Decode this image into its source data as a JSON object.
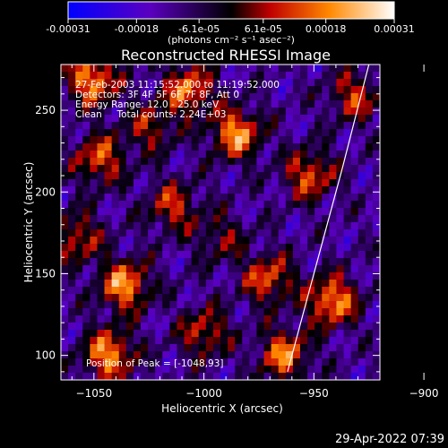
{
  "chart_data": {
    "type": "heatmap",
    "title": "Reconstructed RHESSI Image",
    "xlabel": "Heliocentric X (arcsec)",
    "ylabel": "Heliocentric Y (arcsec)",
    "xlim": [
      -1065,
      -920
    ],
    "ylim": [
      85,
      278
    ],
    "x_ticks": [
      -1050,
      -1000,
      -950,
      -900
    ],
    "y_ticks": [
      100,
      150,
      200,
      250
    ],
    "colorbar": {
      "range": [
        -0.00031,
        0.00031
      ],
      "tick_values": [
        -0.00031,
        -0.00018,
        -6.1e-05,
        6.1e-05,
        0.00018,
        0.00031
      ],
      "tick_labels": [
        "-0.00031",
        "-0.00018",
        "-6.1e-05",
        "6.1e-05",
        "0.00018",
        "0.00031"
      ],
      "unit_label": "(photons cm⁻² s⁻¹ asec⁻²)",
      "colors": [
        "#0000ff",
        "#5a00c0",
        "#000000",
        "#c00000",
        "#ff8800",
        "#ffffff"
      ]
    },
    "annotations": [
      "27-Feb-2003 11:15:52.000 to 11:19:52.000",
      "Detectors: 3F 4F 5F 6F 7F 8F, Att 0",
      "Energy Range: 12.0 - 25.0 keV",
      "Clean     Total counts: 2.24E+03"
    ],
    "peak_label": "Position of Peak = [-1048,93]",
    "limb_line": [
      [
        -962,
        90
      ],
      [
        -950,
        150
      ],
      [
        -937,
        215
      ],
      [
        -925,
        278
      ]
    ]
  },
  "footer": {
    "date": "29-Apr-2022 07:39"
  }
}
